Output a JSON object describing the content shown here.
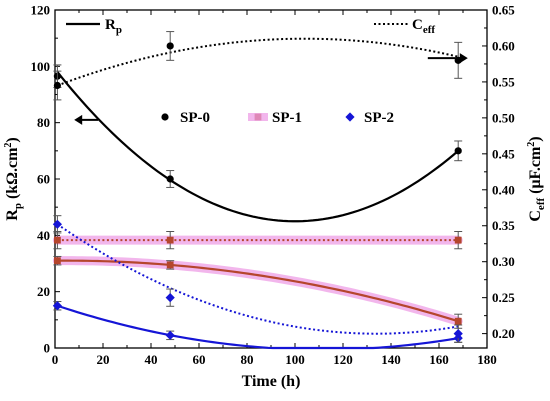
{
  "chart_data": {
    "type": "scatter",
    "xlabel": "Time (h)",
    "ylabel_left": {
      "base": "R",
      "sub": "p",
      "rest": " (kΩ.cm",
      "sup": "2",
      "end": ")"
    },
    "ylabel_right": {
      "base": "C",
      "sub": "eff",
      "rest": " (μF.cm",
      "sup": "2",
      "end": ")"
    },
    "xlim": [
      0,
      180
    ],
    "ylim_left": [
      0,
      120
    ],
    "ylim_right": [
      0.18,
      0.65
    ],
    "x_ticks": [
      "0",
      "20",
      "40",
      "60",
      "80",
      "100",
      "120",
      "140",
      "160",
      "180"
    ],
    "y_left_ticks": [
      "0",
      "20",
      "40",
      "60",
      "80",
      "100",
      "120"
    ],
    "y_right_ticks": [
      "0.20",
      "0.25",
      "0.30",
      "0.35",
      "0.40",
      "0.45",
      "0.50",
      "0.55",
      "0.60",
      "0.65"
    ],
    "legend_lines": [
      {
        "label_base": "R",
        "label_sub": "p",
        "style": "solid"
      },
      {
        "label_base": "C",
        "label_sub": "eff",
        "style": "dotted"
      }
    ],
    "legend_markers": [
      {
        "name": "SP-0",
        "marker": "circle",
        "color": "#000000"
      },
      {
        "name": "SP-1",
        "marker": "square",
        "color": "#b5462d"
      },
      {
        "name": "SP-2",
        "marker": "diamond",
        "color": "#1515d6"
      }
    ],
    "series": [
      {
        "name": "SP-0",
        "quantity": "Rp",
        "axis": "left",
        "color": "#000000",
        "marker": "circle",
        "x": [
          1,
          48,
          168
        ],
        "y": [
          96.5,
          60,
          70
        ],
        "err": [
          4,
          3,
          3.5
        ]
      },
      {
        "name": "SP-0",
        "quantity": "Ceff",
        "axis": "right",
        "color": "#000000",
        "marker": "circle",
        "x": [
          1,
          48,
          168
        ],
        "y": [
          0.545,
          0.6,
          0.58
        ],
        "err": [
          0.02,
          0.02,
          0.025
        ]
      },
      {
        "name": "SP-1",
        "quantity": "Rp",
        "axis": "left",
        "color": "#b5462d",
        "marker": "square",
        "x": [
          1,
          48,
          168
        ],
        "y": [
          31,
          29.5,
          9.5
        ],
        "err": [
          1.5,
          1.5,
          2.5
        ]
      },
      {
        "name": "SP-1",
        "quantity": "Ceff",
        "axis": "right",
        "color": "#b5462d",
        "marker": "square",
        "x": [
          1,
          48,
          168
        ],
        "y": [
          0.33,
          0.33,
          0.33
        ],
        "err": [
          0.012,
          0.012,
          0.012
        ]
      },
      {
        "name": "SP-2",
        "quantity": "Rp",
        "axis": "left",
        "color": "#1515d6",
        "marker": "diamond",
        "x": [
          1,
          48,
          168
        ],
        "y": [
          15,
          4.5,
          3.5
        ],
        "err": [
          1.5,
          1.5,
          1.5
        ]
      },
      {
        "name": "SP-2",
        "quantity": "Ceff",
        "axis": "right",
        "color": "#1515d6",
        "marker": "diamond",
        "x": [
          1,
          48,
          168
        ],
        "y": [
          0.352,
          0.25,
          0.2
        ],
        "err": [
          0.012,
          0.012,
          0.012
        ]
      }
    ],
    "fits": [
      {
        "series": "SP-0 Rp",
        "axis": "left",
        "style": "solid",
        "color": "#000000",
        "halo": false,
        "x": [
          1,
          100,
          168
        ],
        "y": [
          98,
          45,
          70
        ]
      },
      {
        "series": "SP-0 Ceff",
        "axis": "right",
        "style": "dotted",
        "color": "#000000",
        "halo": false,
        "x": [
          1,
          100,
          168
        ],
        "y": [
          0.545,
          0.61,
          0.585
        ]
      },
      {
        "series": "SP-1 Rp",
        "axis": "left",
        "style": "solid",
        "color": "#b5462d",
        "halo": true,
        "x": [
          1,
          48,
          168
        ],
        "y": [
          31,
          29.5,
          9.5
        ]
      },
      {
        "series": "SP-1 Ceff",
        "axis": "right",
        "style": "dotted",
        "color": "#b5462d",
        "halo": true,
        "x": [
          1,
          168
        ],
        "y": [
          0.33,
          0.33
        ]
      },
      {
        "series": "SP-2 Rp",
        "axis": "left",
        "style": "solid",
        "color": "#1515d6",
        "halo": false,
        "x": [
          1,
          90,
          168
        ],
        "y": [
          15,
          0,
          3.5
        ]
      },
      {
        "series": "SP-2 Ceff",
        "axis": "right",
        "style": "dotted",
        "color": "#1515d6",
        "halo": false,
        "x": [
          1,
          130,
          168
        ],
        "y": [
          0.352,
          0.2,
          0.21
        ]
      }
    ],
    "arrows": [
      {
        "target_axis": "left",
        "direction": "left",
        "x": 8,
        "y_value": 81
      },
      {
        "target_axis": "right",
        "direction": "right",
        "x": 162,
        "y_value": 0.583
      }
    ],
    "halo_color": "#ee9ee6"
  }
}
